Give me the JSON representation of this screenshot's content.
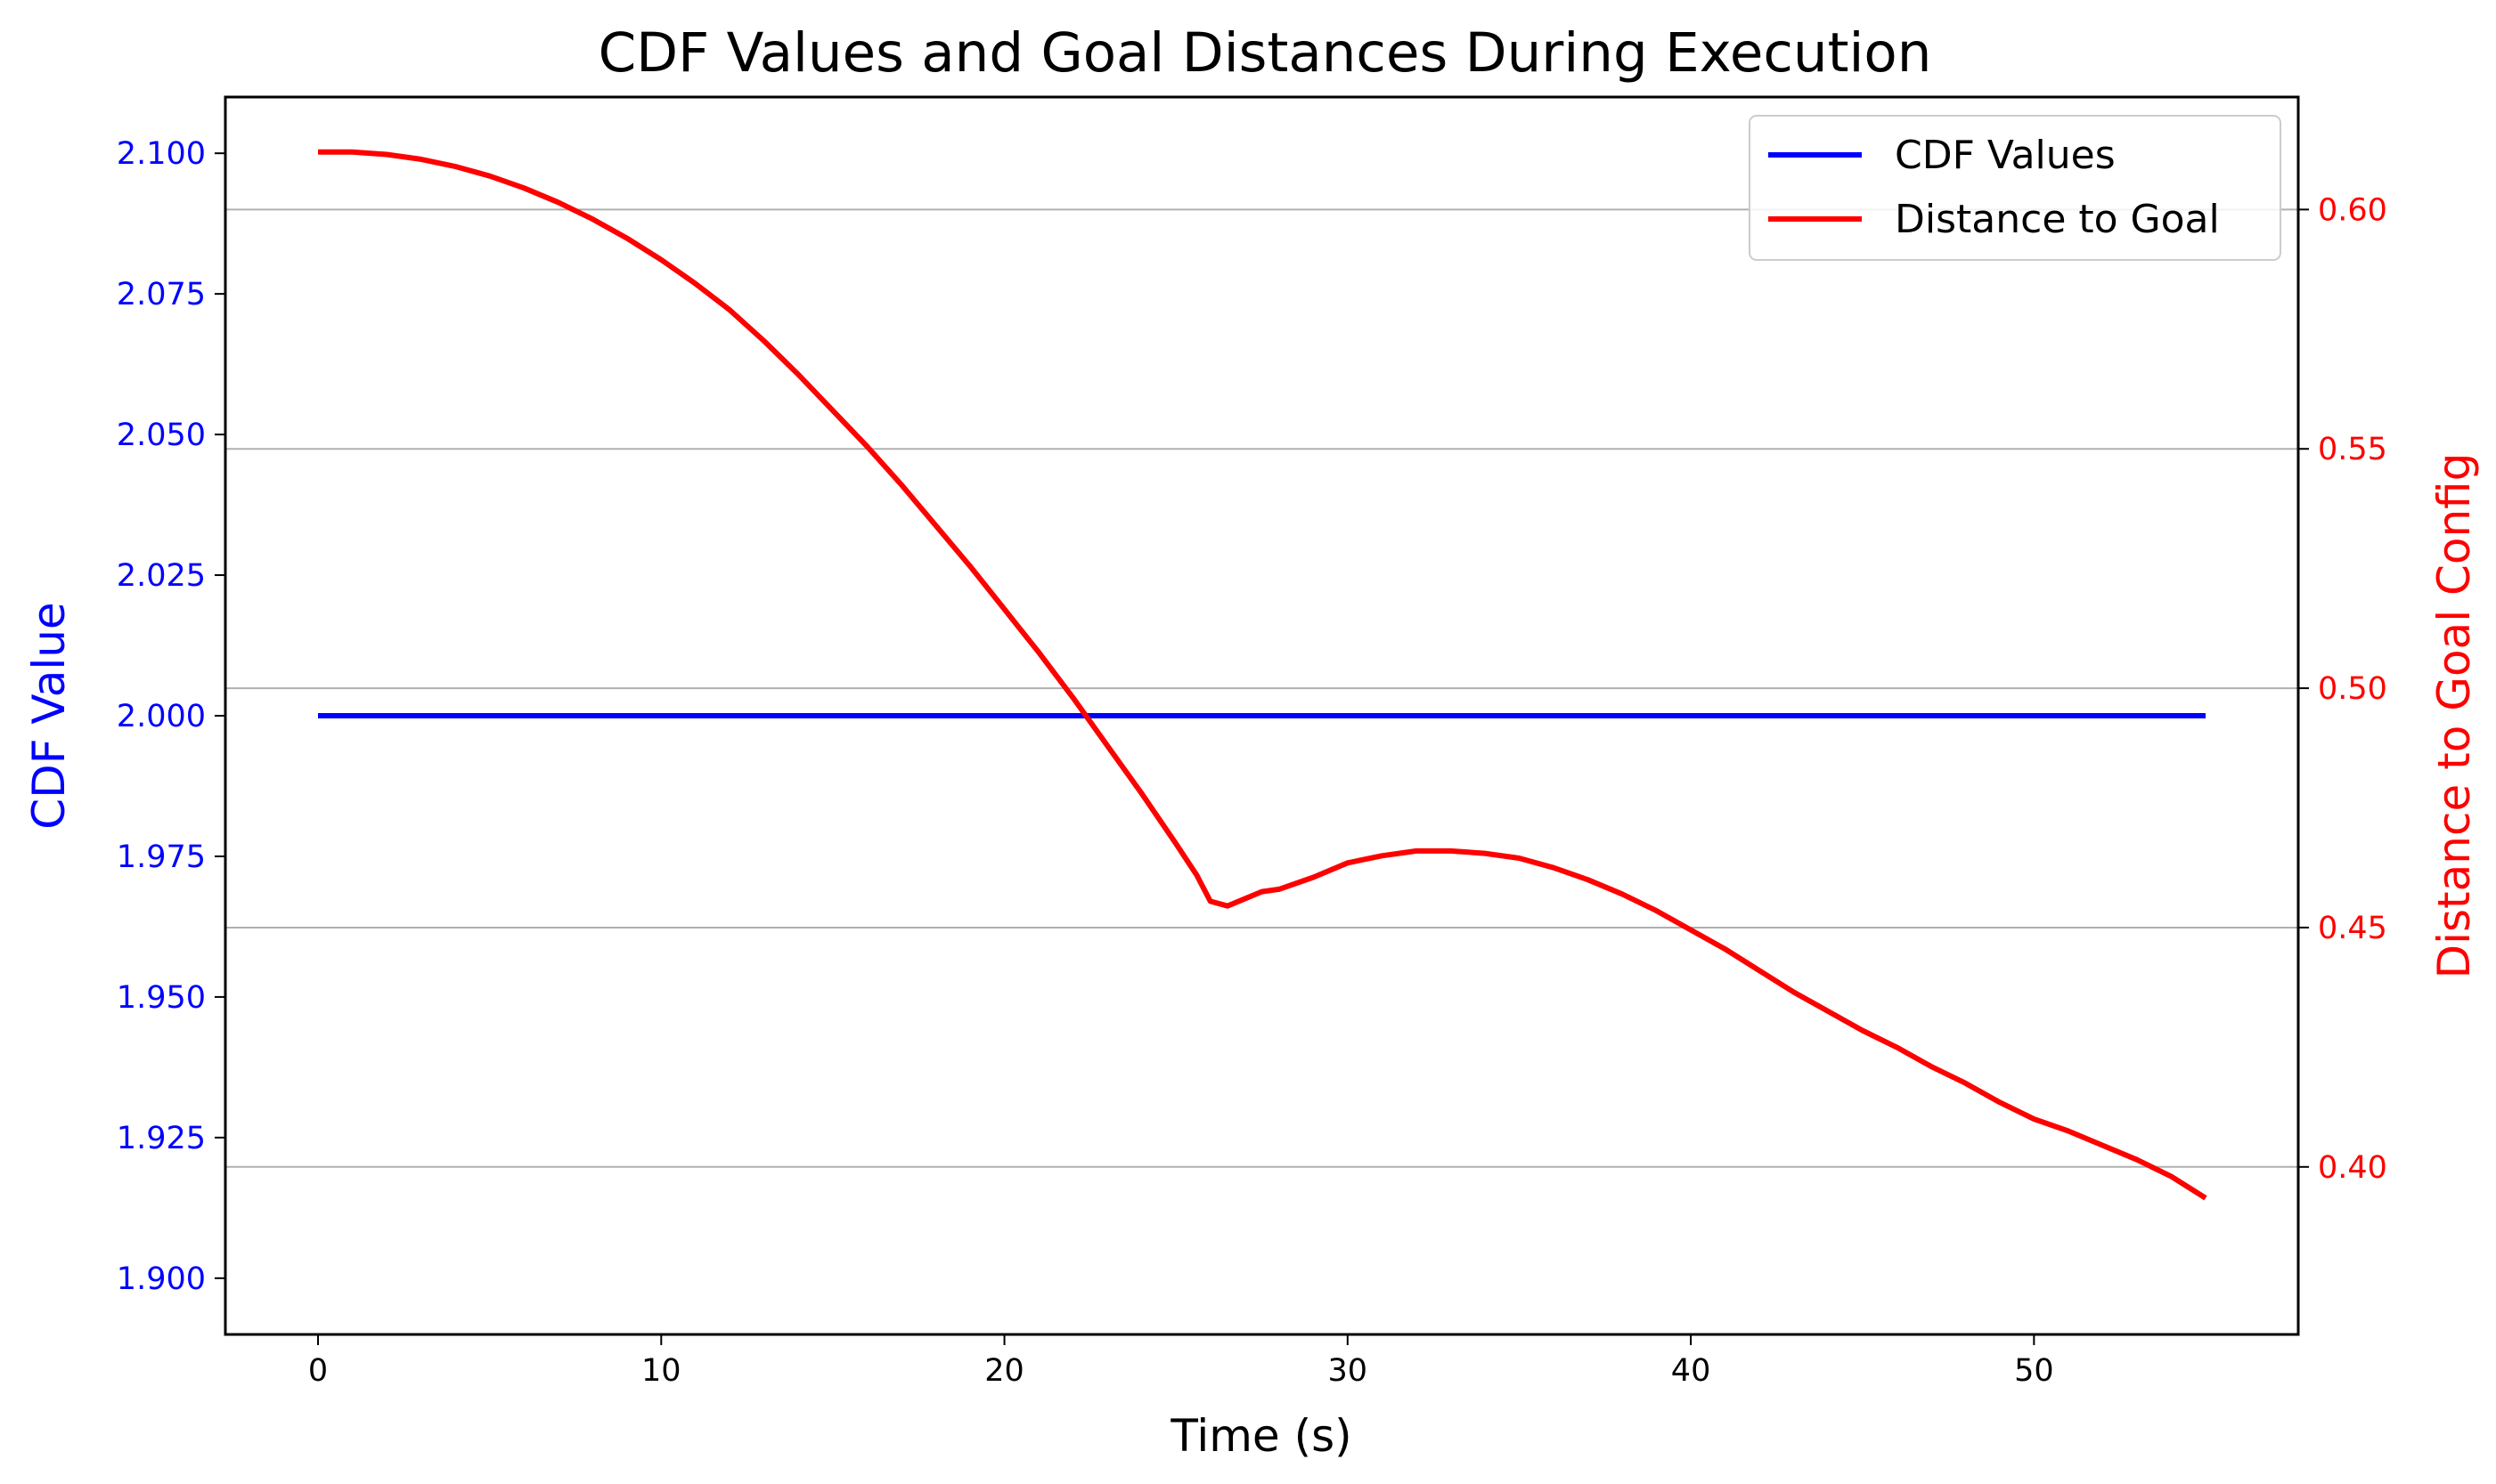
{
  "chart_data": {
    "type": "line",
    "title": "CDF Values and Goal Distances During Execution",
    "xlabel": "Time (s)",
    "ylabel_left": "CDF Value",
    "ylabel_right": "Distance to Goal Config",
    "xlim": [
      -2.7,
      57.7
    ],
    "ylim_left": [
      1.89,
      2.11
    ],
    "ylim_right": [
      0.365,
      0.6235
    ],
    "x_ticks": [
      0,
      10,
      20,
      30,
      40,
      50
    ],
    "y_ticks_left": [
      "1.900",
      "1.925",
      "1.950",
      "1.975",
      "2.000",
      "2.025",
      "2.050",
      "2.075",
      "2.100"
    ],
    "y_ticks_right": [
      "0.40",
      "0.45",
      "0.50",
      "0.55",
      "0.60"
    ],
    "grid": "horizontal",
    "legend_position": "upper-right",
    "colors": {
      "cdf": "#0000ff",
      "distance": "#ff0000",
      "grid": "#b0b0b0",
      "axes": "#000000"
    },
    "series": [
      {
        "name": "CDF Values",
        "axis": "left",
        "points": [
          [
            0,
            2.0
          ],
          [
            55,
            2.0
          ]
        ]
      },
      {
        "name": "Distance to Goal",
        "axis": "right",
        "points": [
          [
            0,
            0.612
          ],
          [
            1,
            0.612
          ],
          [
            2,
            0.6115
          ],
          [
            3,
            0.6105
          ],
          [
            4,
            0.609
          ],
          [
            5,
            0.607
          ],
          [
            6,
            0.6045
          ],
          [
            7,
            0.6015
          ],
          [
            8,
            0.598
          ],
          [
            9,
            0.594
          ],
          [
            10,
            0.5895
          ],
          [
            11,
            0.5845
          ],
          [
            12,
            0.579
          ],
          [
            13,
            0.5725
          ],
          [
            14,
            0.5655
          ],
          [
            15,
            0.558
          ],
          [
            16,
            0.5505
          ],
          [
            17,
            0.5425
          ],
          [
            18,
            0.534
          ],
          [
            19,
            0.5255
          ],
          [
            20,
            0.5165
          ],
          [
            21,
            0.5075
          ],
          [
            22,
            0.498
          ],
          [
            23,
            0.488
          ],
          [
            24,
            0.478
          ],
          [
            25,
            0.4675
          ],
          [
            25.6,
            0.461
          ],
          [
            26,
            0.4555
          ],
          [
            26.5,
            0.4545
          ],
          [
            27,
            0.456
          ],
          [
            27.5,
            0.4575
          ],
          [
            28,
            0.458
          ],
          [
            29,
            0.4605
          ],
          [
            30,
            0.4635
          ],
          [
            31,
            0.465
          ],
          [
            32,
            0.466
          ],
          [
            33,
            0.466
          ],
          [
            34,
            0.4655
          ],
          [
            35,
            0.4645
          ],
          [
            36,
            0.4625
          ],
          [
            37,
            0.46
          ],
          [
            38,
            0.457
          ],
          [
            39,
            0.4535
          ],
          [
            40,
            0.4495
          ],
          [
            41,
            0.4455
          ],
          [
            42,
            0.441
          ],
          [
            43,
            0.4365
          ],
          [
            44,
            0.4325
          ],
          [
            45,
            0.4285
          ],
          [
            46,
            0.425
          ],
          [
            47,
            0.421
          ],
          [
            48,
            0.4175
          ],
          [
            49,
            0.4135
          ],
          [
            50,
            0.41
          ],
          [
            51,
            0.4075
          ],
          [
            52,
            0.4045
          ],
          [
            53,
            0.4015
          ],
          [
            54,
            0.398
          ],
          [
            55,
            0.3935
          ]
        ]
      }
    ]
  }
}
